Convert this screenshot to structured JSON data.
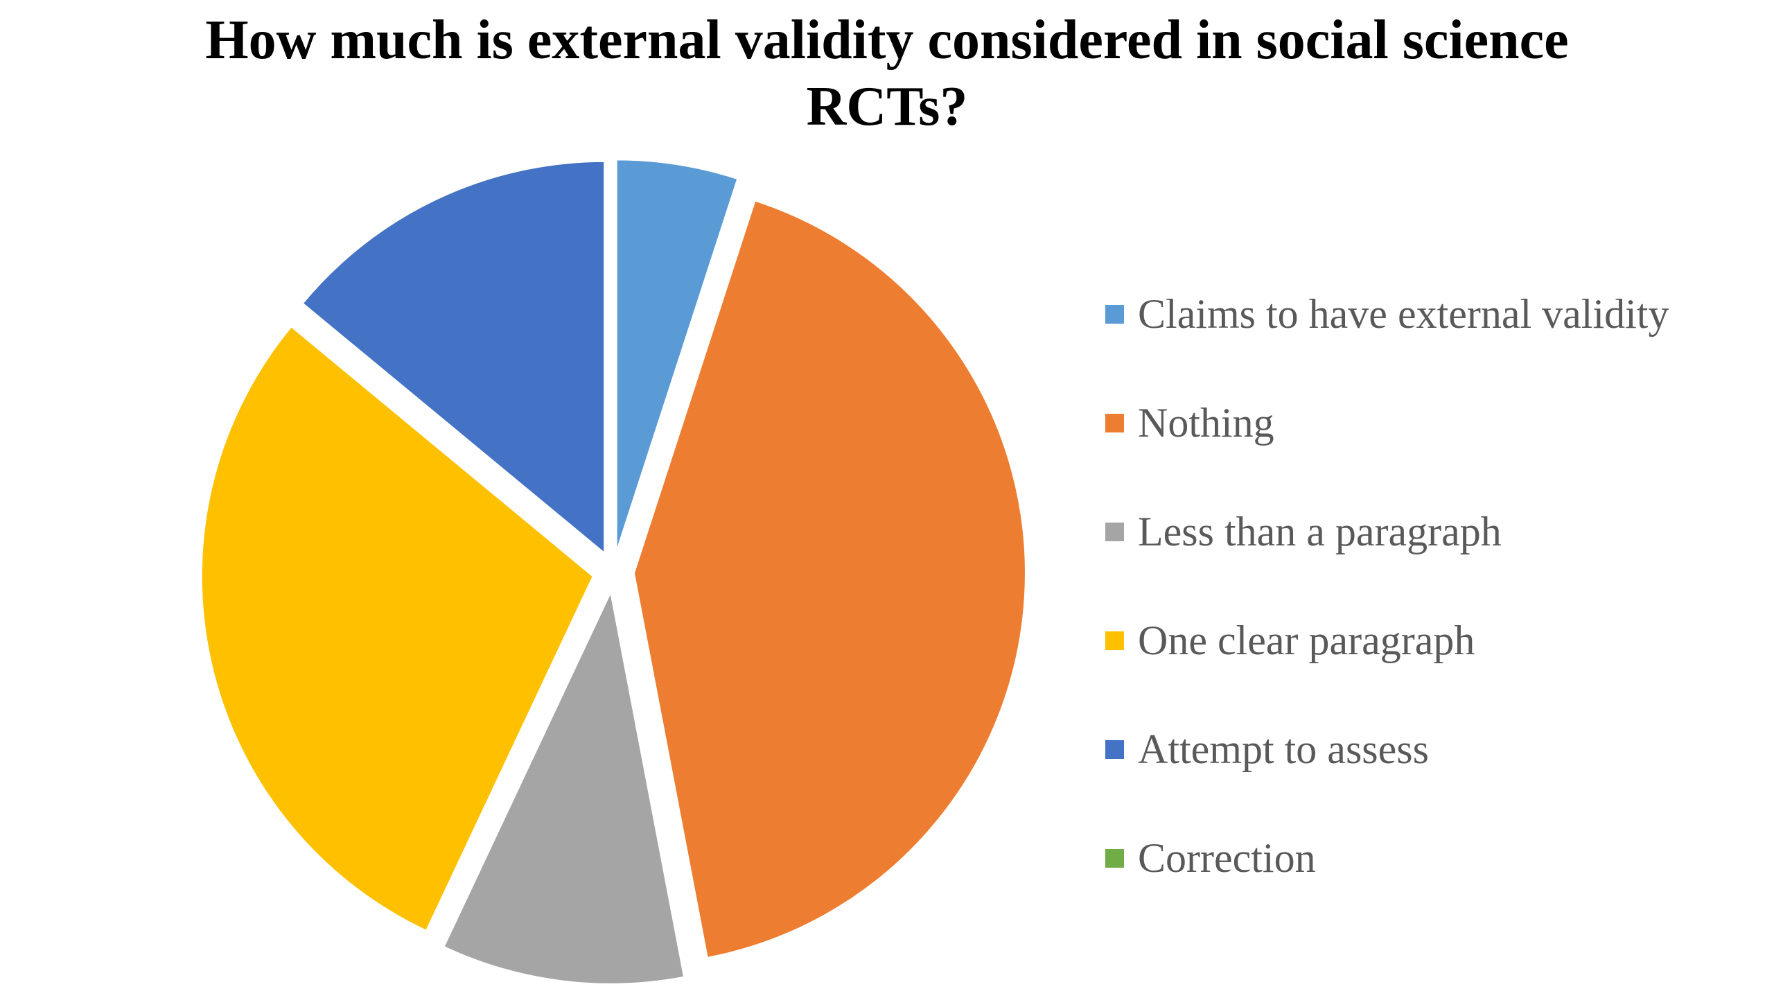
{
  "chart_data": {
    "type": "pie",
    "title": "How much is external validity considered in social science RCTs?",
    "title_lines": [
      "How much is external validity considered in social science",
      "RCTs?"
    ],
    "categories": [
      "Claims to have external validity",
      "Nothing",
      "Less than a paragraph",
      "One clear paragraph",
      "Attempt to assess",
      "Correction"
    ],
    "values": [
      5,
      42,
      10,
      29,
      14,
      0
    ],
    "colors": [
      "#5B9BD5",
      "#ED7D31",
      "#A5A5A5",
      "#FFC000",
      "#4472C4",
      "#70AD47"
    ],
    "exploded": true,
    "start_angle": "12 o'clock",
    "direction": "clockwise",
    "legend_position": "right"
  }
}
